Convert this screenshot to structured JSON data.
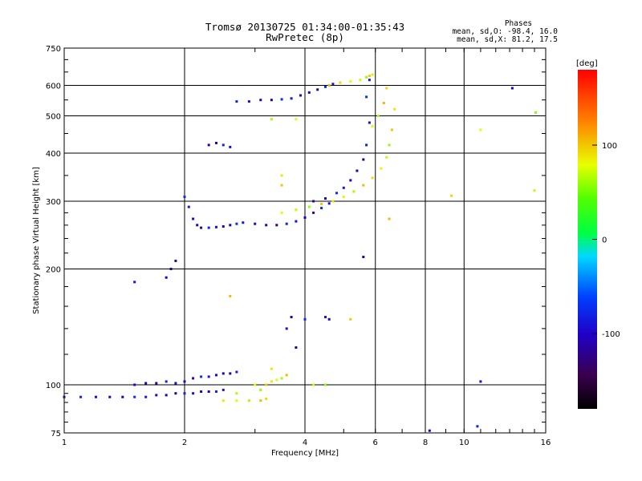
{
  "chart_data": {
    "type": "scatter",
    "title": "Tromsø 20130725 01:34:00-01:35:43",
    "subtitle": "RwPretec (8p)",
    "xlabel": "Frequency [MHz]",
    "ylabel": "Stationary phase Virtual Height [km]",
    "x_scale": "log",
    "y_scale": "log",
    "xlim": [
      1,
      16
    ],
    "ylim": [
      75,
      750
    ],
    "x_ticks": [
      1,
      2,
      4,
      6,
      8,
      10,
      16
    ],
    "x_tick_labels": [
      "1",
      "2",
      "4",
      "6",
      "8",
      "10",
      "16"
    ],
    "y_ticks": [
      75,
      100,
      200,
      300,
      400,
      500,
      600,
      750
    ],
    "y_tick_labels": [
      "75",
      "100",
      "200",
      "300",
      "400",
      "500",
      "600",
      "750"
    ],
    "grid": true,
    "legend": {
      "title": "Phases",
      "line1": "mean, sd,O:  -98.4, 16.0",
      "line2": "mean, sd,X:   81.2, 17.5"
    },
    "colorbar": {
      "label": "[deg]",
      "range": [
        -180,
        180
      ],
      "ticks": [
        100,
        0,
        -100
      ],
      "tick_labels": [
        "100",
        "0",
        "-100"
      ]
    },
    "series": [
      {
        "name": "O",
        "phase": -98.4,
        "traces": [
          {
            "x": [
              1.0,
              1.1,
              1.2,
              1.3,
              1.4,
              1.5,
              1.6,
              1.7,
              1.8,
              1.9,
              2.0,
              2.1,
              2.2,
              2.3,
              2.4,
              2.5
            ],
            "y": [
              93,
              93,
              93,
              93,
              93,
              93,
              93,
              94,
              94,
              95,
              95,
              95,
              96,
              96,
              96,
              97
            ]
          },
          {
            "x": [
              1.5,
              1.6,
              1.7,
              1.8,
              1.9,
              2.0,
              2.1,
              2.2,
              2.3,
              2.4,
              2.5,
              2.6,
              2.7
            ],
            "y": [
              100,
              101,
              101,
              102,
              101,
              102,
              104,
              105,
              105,
              106,
              107,
              107,
              108
            ]
          },
          {
            "x": [
              2.0,
              2.05,
              2.1,
              2.15,
              2.2,
              2.3,
              2.4,
              2.5,
              2.6,
              2.7,
              2.8,
              3.0,
              3.2,
              3.4,
              3.6,
              3.8,
              4.0,
              4.2,
              4.4,
              4.6
            ],
            "y": [
              308,
              290,
              270,
              260,
              256,
              256,
              257,
              258,
              260,
              262,
              264,
              262,
              260,
              260,
              262,
              266,
              272,
              280,
              288,
              296
            ]
          },
          {
            "x": [
              4.2,
              4.5,
              4.8,
              5.0,
              5.2,
              5.4,
              5.6,
              5.7,
              5.8
            ],
            "y": [
              300,
              305,
              315,
              325,
              340,
              360,
              385,
              420,
              480
            ]
          },
          {
            "x": [
              2.7,
              2.9,
              3.1,
              3.3,
              3.5,
              3.7,
              3.9,
              4.1,
              4.3,
              4.5,
              4.7
            ],
            "y": [
              545,
              545,
              550,
              550,
              552,
              555,
              565,
              575,
              585,
              595,
              605
            ]
          },
          {
            "x": [
              2.3,
              2.4,
              2.5,
              2.6
            ],
            "y": [
              420,
              425,
              420,
              415
            ]
          },
          {
            "x": [
              1.5,
              1.8,
              1.85,
              1.9
            ],
            "y": [
              185,
              190,
              200,
              210
            ]
          },
          {
            "x": [
              5.6,
              5.7,
              5.8
            ],
            "y": [
              215,
              560,
              620
            ]
          },
          {
            "x": [
              3.6,
              3.7,
              3.8,
              4.0,
              4.5,
              4.6
            ],
            "y": [
              140,
              150,
              125,
              148,
              150,
              148
            ]
          },
          {
            "x": [
              8.2,
              10.8,
              11.0,
              13.2
            ],
            "y": [
              76,
              78,
              102,
              590
            ]
          }
        ]
      },
      {
        "name": "X",
        "phase": 81.2,
        "traces": [
          {
            "x": [
              2.5,
              2.7,
              2.9,
              3.1,
              3.2
            ],
            "y": [
              91,
              91,
              91,
              91,
              92
            ]
          },
          {
            "x": [
              3.1,
              3.2,
              3.3,
              3.4,
              3.5,
              3.6
            ],
            "y": [
              97,
              100,
              102,
              103,
              104,
              106
            ]
          },
          {
            "x": [
              3.5,
              3.8,
              4.1,
              4.4,
              4.7,
              5.0,
              5.3,
              5.6,
              5.9,
              6.2,
              6.4,
              6.5,
              6.6,
              6.7
            ],
            "y": [
              280,
              285,
              290,
              295,
              300,
              308,
              318,
              330,
              345,
              365,
              390,
              420,
              460,
              520
            ]
          },
          {
            "x": [
              4.6,
              4.9,
              5.2,
              5.5,
              5.7,
              5.8,
              5.9
            ],
            "y": [
              600,
              610,
              615,
              620,
              630,
              635,
              640
            ]
          },
          {
            "x": [
              5.9,
              6.1,
              6.3,
              6.4
            ],
            "y": [
              470,
              500,
              540,
              590
            ]
          },
          {
            "x": [
              3.5,
              3.5,
              3.8,
              3.3,
              6.5,
              9.3,
              11.0,
              15.0,
              15.1
            ],
            "y": [
              330,
              350,
              490,
              490,
              270,
              310,
              460,
              320,
              510
            ]
          },
          {
            "x": [
              4.2,
              4.5,
              5.2,
              3.3,
              3.0,
              2.7,
              2.6
            ],
            "y": [
              100,
              100,
              148,
              110,
              100,
              95,
              170
            ]
          }
        ]
      }
    ]
  }
}
